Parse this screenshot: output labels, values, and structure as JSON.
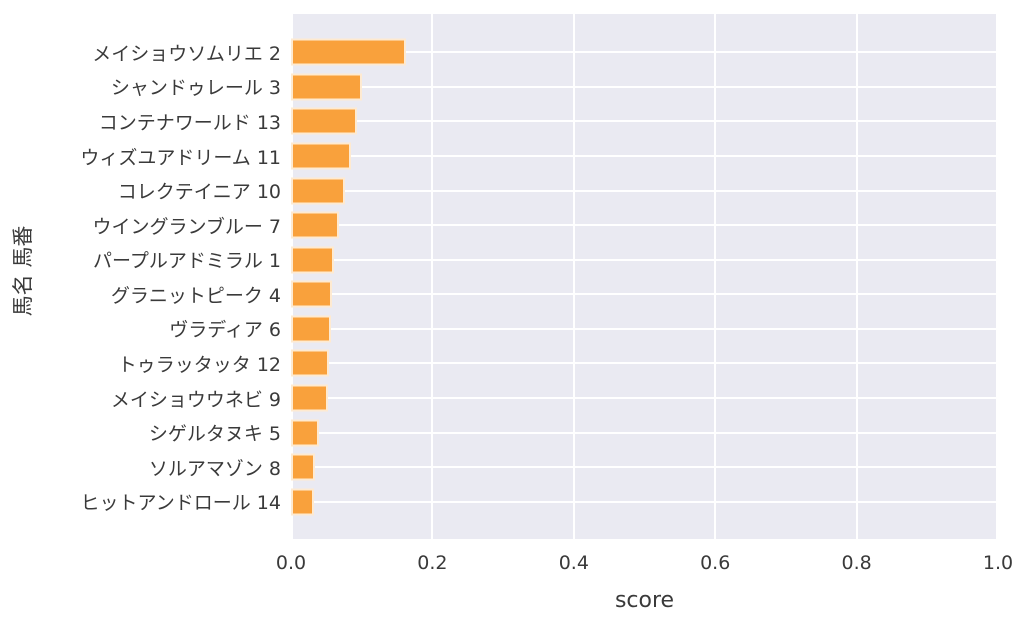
{
  "chart_data": {
    "type": "bar",
    "orientation": "horizontal",
    "title": "",
    "xlabel": "score",
    "ylabel": "馬名 馬番",
    "xlim": [
      0,
      1
    ],
    "xtick_labels": [
      "0.0",
      "0.2",
      "0.4",
      "0.6",
      "0.8",
      "1.0"
    ],
    "grid": "on",
    "legend_position": "none",
    "categories": [
      "メイショウソムリエ 2",
      "シャンドゥレール 3",
      "コンテナワールド 13",
      "ウィズユアドリーム 11",
      "コレクテイニア 10",
      "ウイングランブルー 7",
      "パープルアドミラル 1",
      "グラニットピーク 4",
      "ヴラディア 6",
      "トゥラッタッタ 12",
      "メイショウウネビ 9",
      "シゲルタヌキ 5",
      "ソルアマゾン 8",
      "ヒットアンドロール 14"
    ],
    "values": [
      0.163,
      0.1,
      0.094,
      0.085,
      0.077,
      0.068,
      0.061,
      0.058,
      0.056,
      0.054,
      0.052,
      0.039,
      0.034,
      0.032
    ],
    "colors": {
      "bar": "#F9A13C",
      "plot_background": "#EAEAF2",
      "gridline": "#FFFFFF",
      "text": "#3A3A3A",
      "figure_background": "#FFFFFF"
    }
  }
}
